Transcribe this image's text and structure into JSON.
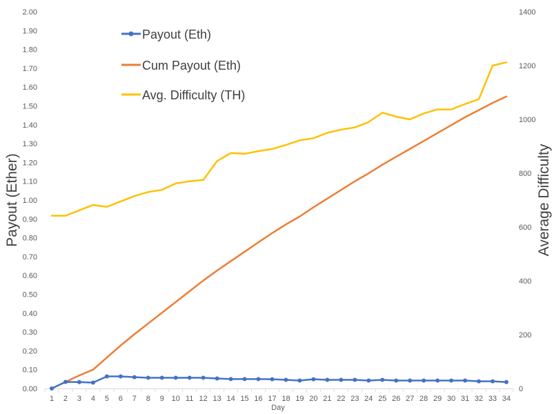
{
  "chart_data": {
    "type": "line",
    "xlabel": "Day",
    "ylabel": "Payout (Ether)",
    "y2label": "Average Difficulty",
    "x": [
      1,
      2,
      3,
      4,
      5,
      6,
      7,
      8,
      9,
      10,
      11,
      12,
      13,
      14,
      15,
      16,
      17,
      18,
      19,
      20,
      21,
      22,
      23,
      24,
      25,
      26,
      27,
      28,
      29,
      30,
      31,
      32,
      33,
      34
    ],
    "ylim": [
      0,
      2.0
    ],
    "y2lim": [
      0,
      1400
    ],
    "yticks": [
      "0.00",
      "0.10",
      "0.20",
      "0.30",
      "0.40",
      "0.50",
      "0.60",
      "0.70",
      "0.80",
      "0.90",
      "1.00",
      "1.10",
      "1.20",
      "1.30",
      "1.40",
      "1.50",
      "1.60",
      "1.70",
      "1.80",
      "1.90",
      "2.00"
    ],
    "y2ticks": [
      "0",
      "200",
      "400",
      "600",
      "800",
      "1000",
      "1200",
      "1400"
    ],
    "legend_position": "top-left",
    "series": [
      {
        "name": "Payout (Eth)",
        "axis": "left",
        "color": "#4472C4",
        "markers": true,
        "values": [
          0.0,
          0.035,
          0.034,
          0.031,
          0.064,
          0.064,
          0.06,
          0.057,
          0.057,
          0.057,
          0.057,
          0.057,
          0.053,
          0.05,
          0.05,
          0.05,
          0.049,
          0.046,
          0.042,
          0.049,
          0.046,
          0.046,
          0.046,
          0.042,
          0.046,
          0.042,
          0.042,
          0.042,
          0.042,
          0.042,
          0.042,
          0.038,
          0.038,
          0.034
        ]
      },
      {
        "name": "Cum Payout (Eth)",
        "axis": "left",
        "color": "#ED7D31",
        "markers": false,
        "values": [
          0.0,
          0.035,
          0.069,
          0.1,
          0.164,
          0.228,
          0.288,
          0.345,
          0.402,
          0.459,
          0.516,
          0.573,
          0.626,
          0.676,
          0.726,
          0.776,
          0.825,
          0.871,
          0.913,
          0.962,
          1.008,
          1.054,
          1.1,
          1.142,
          1.188,
          1.23,
          1.272,
          1.314,
          1.356,
          1.398,
          1.44,
          1.478,
          1.516,
          1.55
        ]
      },
      {
        "name": "Avg. Difficulty (TH)",
        "axis": "right",
        "color": "#FFC000",
        "markers": false,
        "values": [
          642,
          642,
          662,
          682,
          675,
          695,
          715,
          730,
          738,
          762,
          770,
          775,
          845,
          875,
          872,
          882,
          890,
          905,
          922,
          930,
          950,
          962,
          970,
          990,
          1025,
          1010,
          1000,
          1022,
          1037,
          1037,
          1057,
          1075,
          1200,
          1212
        ]
      }
    ]
  }
}
